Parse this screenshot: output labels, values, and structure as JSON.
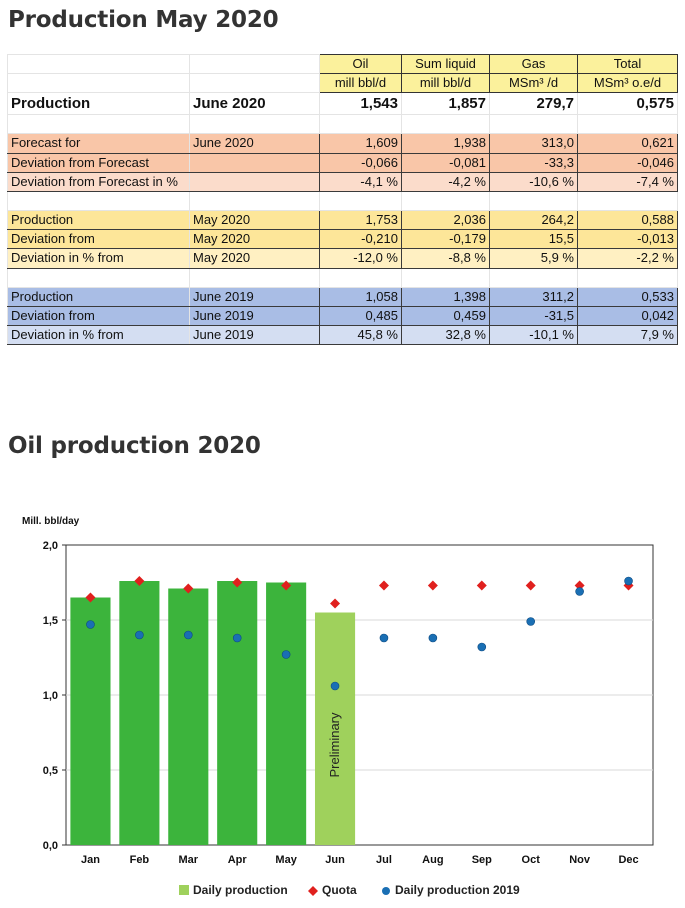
{
  "titles": {
    "table": "Production May 2020",
    "chart": "Oil production 2020"
  },
  "table": {
    "headers": [
      "Oil",
      "Sum liquid",
      "Gas",
      "Total"
    ],
    "units": [
      "mill bbl/d",
      "mill bbl/d",
      "MSm³ /d",
      "MSm³ o.e/d"
    ],
    "main": {
      "label": "Production",
      "period": "June 2020",
      "values": [
        "1,543",
        "1,857",
        "279,7",
        "0,575"
      ]
    },
    "forecast_group": [
      {
        "label": "Forecast for",
        "period": "June 2020",
        "values": [
          "1,609",
          "1,938",
          "313,0",
          "0,621"
        ]
      },
      {
        "label": "Deviation from Forecast",
        "period": "",
        "values": [
          "-0,066",
          "-0,081",
          "-33,3",
          "-0,046"
        ]
      },
      {
        "label": "Deviation from Forecast in %",
        "period": "",
        "values": [
          "-4,1 %",
          "-4,2 %",
          "-10,6 %",
          "-7,4 %"
        ]
      }
    ],
    "may_group": [
      {
        "label": "Production",
        "period": "May 2020",
        "values": [
          "1,753",
          "2,036",
          "264,2",
          "0,588"
        ]
      },
      {
        "label": "Deviation from",
        "period": "May 2020",
        "values": [
          "-0,210",
          "-0,179",
          "15,5",
          "-0,013"
        ]
      },
      {
        "label": "Deviation  in % from",
        "period": " May 2020",
        "values": [
          "-12,0 %",
          "-8,8 %",
          "5,9 %",
          "-2,2 %"
        ]
      }
    ],
    "june2019_group": [
      {
        "label": "Production",
        "period": "June 2019",
        "values": [
          "1,058",
          "1,398",
          "311,2",
          "0,533"
        ]
      },
      {
        "label": "Deviation from",
        "period": "June 2019",
        "values": [
          "0,485",
          "0,459",
          "-31,5",
          "0,042"
        ]
      },
      {
        "label": "Deviation  in % from",
        "period": " June 2019",
        "values": [
          "45,8 %",
          "32,8 %",
          "-10,1 %",
          "7,9 %"
        ]
      }
    ]
  },
  "chart_data": {
    "type": "bar",
    "ylabel": "Mill. bbl/day",
    "ylim": [
      0,
      2
    ],
    "yticks": [
      "0,0",
      "0,5",
      "1,0",
      "1,5",
      "2,0"
    ],
    "categories": [
      "Jan",
      "Feb",
      "Mar",
      "Apr",
      "May",
      "Jun",
      "Jul",
      "Aug",
      "Sep",
      "Oct",
      "Nov",
      "Dec"
    ],
    "bar_annotation": "Preliminary",
    "grid": true,
    "legend_position": "bottom",
    "series": [
      {
        "name": "Daily production",
        "kind": "bar",
        "color": "#3cb43c",
        "preliminary_color": "#9fd15c",
        "values": [
          1.65,
          1.76,
          1.71,
          1.76,
          1.75,
          1.55,
          null,
          null,
          null,
          null,
          null,
          null
        ]
      },
      {
        "name": "Quota",
        "kind": "diamond",
        "color": "#e0201e",
        "values": [
          1.65,
          1.76,
          1.71,
          1.75,
          1.73,
          1.61,
          1.73,
          1.73,
          1.73,
          1.73,
          1.73,
          1.73
        ]
      },
      {
        "name": "Daily production 2019",
        "kind": "dot",
        "color": "#1a6fb4",
        "values": [
          1.47,
          1.4,
          1.4,
          1.38,
          1.27,
          1.06,
          1.38,
          1.38,
          1.32,
          1.49,
          1.69,
          1.76
        ]
      }
    ]
  }
}
